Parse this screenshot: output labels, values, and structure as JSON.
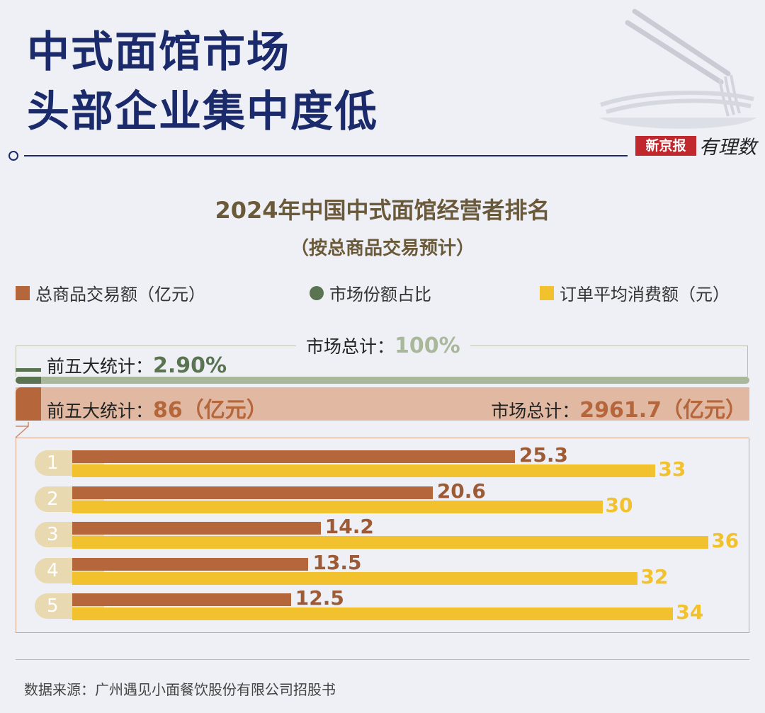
{
  "headline": {
    "line1": "中式面馆市场",
    "line2": "头部企业集中度低"
  },
  "brand": {
    "box_text": "新京报",
    "script_text": "有理数"
  },
  "chart_title": {
    "line1": "2024年中国中式面馆经营者排名",
    "line2": "（按总商品交易预计）"
  },
  "legend": [
    {
      "label": "总商品交易额（亿元）",
      "color": "#b5663a",
      "shape": "square"
    },
    {
      "label": "市场份额占比",
      "color": "#5a7351",
      "shape": "circle"
    },
    {
      "label": "订单平均消费额（元）",
      "color": "#f2c12e",
      "shape": "square"
    }
  ],
  "market_share": {
    "total_label": "市场总计：",
    "total_value": "100%",
    "top5_label": "前五大统计：",
    "top5_value": "2.90%"
  },
  "gmv_summary": {
    "top5_label": "前五大统计：",
    "top5_value": "86（亿元）",
    "total_label": "市场总计：",
    "total_value": "2961.7（亿元）"
  },
  "colors": {
    "gmv": "#b5663a",
    "aov": "#f2c12e",
    "share": "#5a7351",
    "share_total": "#a9b79a",
    "gmv_total_bg": "#e1b9a2",
    "rank_pill": "#e9d9b1"
  },
  "chart_data": {
    "type": "bar",
    "orientation": "horizontal",
    "categories": [
      "1",
      "2",
      "3",
      "4",
      "5"
    ],
    "series": [
      {
        "name": "总商品交易额（亿元）",
        "values": [
          25.3,
          20.6,
          14.2,
          13.5,
          12.5
        ],
        "labels": [
          "25.3",
          "20.6",
          "14.2",
          "13.5",
          "12.5"
        ]
      },
      {
        "name": "订单平均消费额（元）",
        "values": [
          33,
          30,
          36,
          32,
          34
        ],
        "labels": [
          "33",
          "30",
          "36",
          "32",
          "34"
        ]
      }
    ]
  },
  "source": "数据来源：广州遇见小面餐饮股份有限公司招股书"
}
